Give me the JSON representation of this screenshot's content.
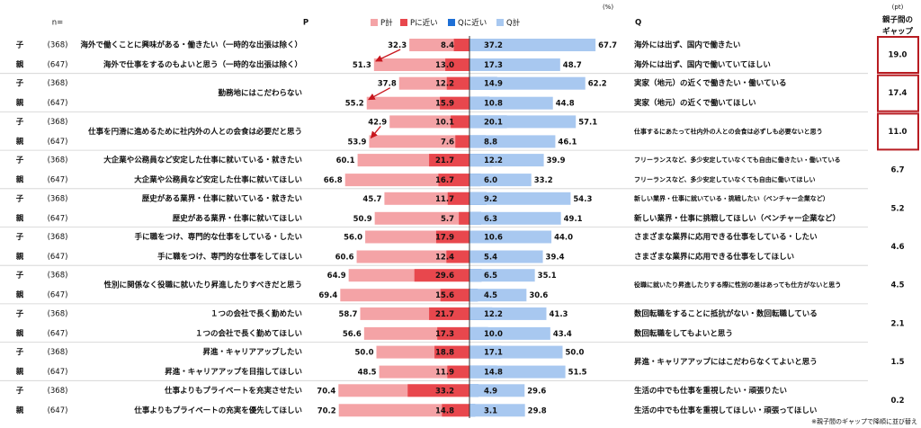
{
  "chart_data": {
    "type": "diverging_bar",
    "header": {
      "n_label": "n=",
      "p_label": "P",
      "q_label": "Q",
      "unit": "(%)",
      "gap_unit": "(pt)",
      "gap_label": [
        "親子間の",
        "ギャップ"
      ]
    },
    "footnote": "※親子間のギャップで降順に並び替え",
    "rows": [
      {
        "respondent": "子",
        "n": "(368)"
      },
      {
        "respondent": "親",
        "n": "(647)"
      },
      {
        "respondent": "子",
        "n": "(368)"
      },
      {
        "respondent": "親",
        "n": "(647)"
      },
      {
        "respondent": "子",
        "n": "(368)"
      },
      {
        "respondent": "親",
        "n": "(647)"
      },
      {
        "respondent": "子",
        "n": "(368)"
      },
      {
        "respondent": "親",
        "n": "(647)"
      },
      {
        "respondent": "子",
        "n": "(368)"
      },
      {
        "respondent": "親",
        "n": "(647)"
      },
      {
        "respondent": "子",
        "n": "(368)"
      },
      {
        "respondent": "親",
        "n": "(647)"
      },
      {
        "respondent": "子",
        "n": "(368)"
      },
      {
        "respondent": "親",
        "n": "(647)"
      },
      {
        "respondent": "子",
        "n": "(368)"
      },
      {
        "respondent": "親",
        "n": "(647)"
      },
      {
        "respondent": "子",
        "n": "(368)"
      },
      {
        "respondent": "親",
        "n": "(647)"
      },
      {
        "respondent": "子",
        "n": "(368)"
      },
      {
        "respondent": "親",
        "n": "(647)"
      }
    ],
    "groups": [
      {
        "p_statements": [
          "海外で働くことに興味がある・働きたい（一時的な出張は除く）",
          "海外で仕事をするのもよいと思う（一時的な出張は除く）"
        ],
        "q_statements": [
          "海外には出ず、国内で働きたい",
          "海外には出ず、国内で働いていてほしい"
        ]
      },
      {
        "p_statements": [
          "勤務地にはこだわらない"
        ],
        "q_statements": [
          "実家（地元）の近くで働きたい・働いている",
          "実家（地元）の近くで働いてほしい"
        ]
      },
      {
        "p_statements": [
          "仕事を円滑に進めるために社内外の人との会食は必要だと思う"
        ],
        "q_statements": [
          "仕事するにあたって社内外の人との会食は必ずしも必要ないと思う"
        ]
      },
      {
        "p_statements": [
          "大企業や公務員など安定した仕事に就いている・就きたい",
          "大企業や公務員など安定した仕事に就いてほしい"
        ],
        "q_statements": [
          "フリーランスなど、多少安定していなくても自由に働きたい・働いている",
          "フリーランスなど、多少安定していなくても自由に働いてほしい"
        ]
      },
      {
        "p_statements": [
          "歴史がある業界・仕事に就いている・就きたい",
          "歴史がある業界・仕事に就いてほしい"
        ],
        "q_statements": [
          "新しい業界・仕事に就いている・挑戦したい（ベンチャー企業など）",
          "新しい業界・仕事に挑戦してほしい（ベンチャー企業など）"
        ]
      },
      {
        "p_statements": [
          "手に職をつけ、専門的な仕事をしている・したい",
          "手に職をつけ、専門的な仕事をしてほしい"
        ],
        "q_statements": [
          "さまざまな業界に応用できる仕事をしている・したい",
          "さまざまな業界に応用できる仕事をしてほしい"
        ]
      },
      {
        "p_statements": [
          "性別に関係なく役職に就いたり昇進したりすべきだと思う"
        ],
        "q_statements": [
          "役職に就いたり昇進したりする際に性別の差はあっても仕方がないと思う"
        ]
      },
      {
        "p_statements": [
          "１つの会社で長く勤めたい",
          "１つの会社で長く勤めてほしい"
        ],
        "q_statements": [
          "数回転職をすることに抵抗がない・数回転職している",
          "数回転職をしてもよいと思う"
        ]
      },
      {
        "p_statements": [
          "昇進・キャリアアップしたい",
          "昇進・キャリアアップを目指してほしい"
        ],
        "q_statements": [
          "昇進・キャリアアップにはこだわらなくてよいと思う"
        ]
      },
      {
        "p_statements": [
          "仕事よりもプライベートを充実させたい",
          "仕事よりもプライベートの充実を優先してほしい"
        ],
        "q_statements": [
          "生活の中でも仕事を重視したい・頑張りたい",
          "生活の中でも仕事を重視してほしい・頑張ってほしい"
        ]
      }
    ],
    "series": [
      {
        "name": "P計",
        "color": "#f4a3a6",
        "side": "left",
        "values": [
          32.3,
          51.3,
          37.8,
          55.2,
          42.9,
          53.9,
          60.1,
          66.8,
          45.7,
          50.9,
          56.0,
          60.6,
          64.9,
          69.4,
          58.7,
          56.6,
          50.0,
          48.5,
          70.4,
          70.2
        ],
        "value_labels": [
          "32.3",
          "51.3",
          "37.8",
          "55.2",
          "42.9",
          "53.9",
          "60.1",
          "66.8",
          "45.7",
          "50.9",
          "56.0",
          "60.6",
          "64.9",
          "69.4",
          "58.7",
          "56.6",
          "50.0",
          "48.5",
          "70.4",
          "70.2"
        ]
      },
      {
        "name": "Pに近い",
        "color": "#e8474d",
        "side": "left",
        "values": [
          8.4,
          13.0,
          12.2,
          15.9,
          10.1,
          7.6,
          21.7,
          16.7,
          11.7,
          5.7,
          17.9,
          12.4,
          29.6,
          15.6,
          21.7,
          17.3,
          18.8,
          11.9,
          33.2,
          14.8
        ],
        "value_labels": [
          "8.4",
          "13.0",
          "12.2",
          "15.9",
          "10.1",
          "7.6",
          "21.7",
          "16.7",
          "11.7",
          "5.7",
          "17.9",
          "12.4",
          "29.6",
          "15.6",
          "21.7",
          "17.3",
          "18.8",
          "11.9",
          "33.2",
          "14.8"
        ]
      },
      {
        "name": "Qに近い",
        "color": "#1d6fd6",
        "side": "right",
        "values": [
          37.2,
          17.3,
          14.9,
          10.8,
          20.1,
          8.8,
          12.2,
          6.0,
          9.2,
          6.3,
          10.6,
          5.4,
          6.5,
          4.5,
          12.2,
          10.0,
          17.1,
          14.8,
          4.9,
          3.1
        ],
        "value_labels": [
          "37.2",
          "17.3",
          "14.9",
          "10.8",
          "20.1",
          "8.8",
          "12.2",
          "6.0",
          "9.2",
          "6.3",
          "10.6",
          "5.4",
          "6.5",
          "4.5",
          "12.2",
          "10.0",
          "17.1",
          "14.8",
          "4.9",
          "3.1"
        ]
      },
      {
        "name": "Q計",
        "color": "#a8c8f0",
        "side": "right",
        "values": [
          67.7,
          48.7,
          62.2,
          44.8,
          57.1,
          46.1,
          39.9,
          33.2,
          54.3,
          49.1,
          44.0,
          39.4,
          35.1,
          30.6,
          41.3,
          43.4,
          50.0,
          51.5,
          29.6,
          29.8
        ],
        "value_labels": [
          "67.7",
          "48.7",
          "62.2",
          "44.8",
          "57.1",
          "46.1",
          "39.9",
          "33.2",
          "54.3",
          "49.1",
          "44.0",
          "39.4",
          "35.1",
          "30.6",
          "41.3",
          "43.4",
          "50.0",
          "51.5",
          "29.6",
          "29.8"
        ]
      }
    ],
    "gap": {
      "values": [
        19.0,
        17.4,
        11.0,
        6.7,
        5.2,
        4.6,
        4.5,
        2.1,
        1.5,
        0.2
      ],
      "value_labels": [
        "19.0",
        "17.4",
        "11.0",
        "6.7",
        "5.2",
        "4.6",
        "4.5",
        "2.1",
        "1.5",
        "0.2"
      ],
      "highlighted": [
        true,
        true,
        true,
        false,
        false,
        false,
        false,
        false,
        false,
        false
      ],
      "highlight_color": "#b81c22"
    }
  }
}
